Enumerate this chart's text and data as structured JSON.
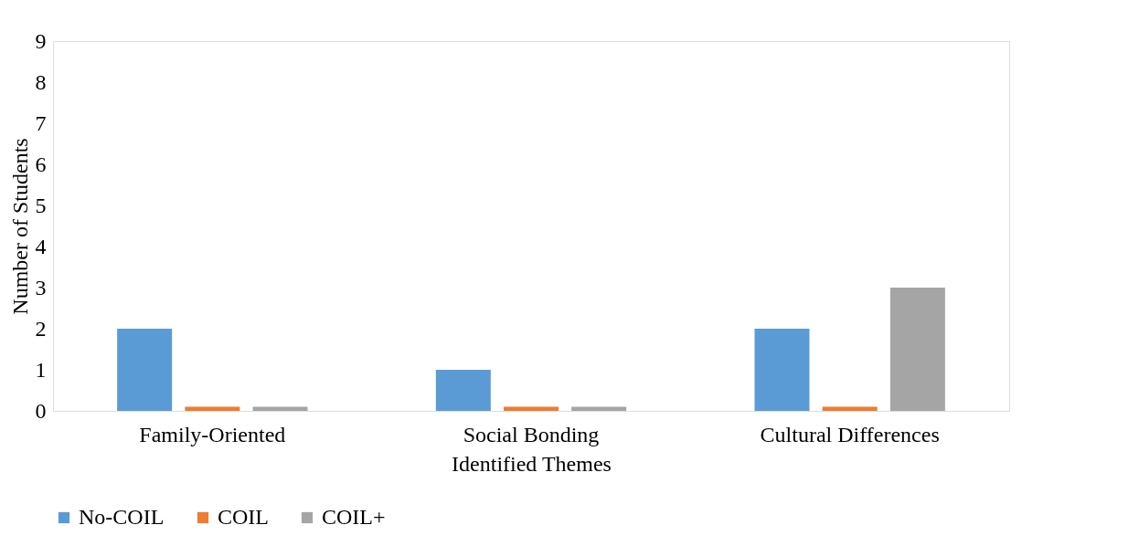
{
  "chart_data": {
    "type": "bar",
    "xlabel": "Identified Themes",
    "ylabel": "Number of Students",
    "categories": [
      "Family-Oriented",
      "Social Bonding",
      "Cultural Differences"
    ],
    "series": [
      {
        "name": "No-COIL",
        "color": "#5b9bd5",
        "values": [
          2,
          1,
          2
        ]
      },
      {
        "name": "COIL",
        "color": "#ed7d31",
        "values": [
          0.1,
          0.1,
          0.1
        ]
      },
      {
        "name": "COIL+",
        "color": "#a5a5a5",
        "values": [
          0.1,
          0.1,
          3
        ]
      }
    ],
    "ylim": [
      0,
      9
    ],
    "yticks": [
      0,
      1,
      2,
      3,
      4,
      5,
      6,
      7,
      8,
      9
    ],
    "grid": false,
    "legend": "bottom"
  }
}
